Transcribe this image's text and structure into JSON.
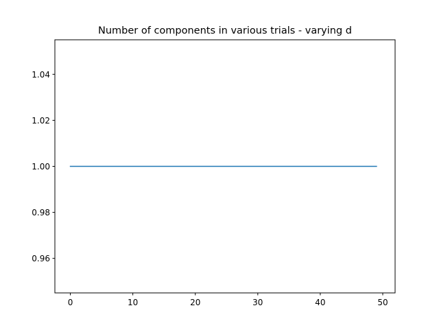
{
  "chart_data": {
    "type": "line",
    "title": "Number of components in various trials - varying d",
    "xlabel": "",
    "ylabel": "",
    "xlim": [
      -2.475,
      51.975
    ],
    "ylim": [
      0.945,
      1.055
    ],
    "xticks": [
      0,
      10,
      20,
      30,
      40,
      50
    ],
    "yticks": [
      0.96,
      0.98,
      1.0,
      1.02,
      1.04
    ],
    "xtick_labels": [
      "0",
      "10",
      "20",
      "30",
      "40",
      "50"
    ],
    "ytick_labels": [
      "0.96",
      "0.98",
      "1.00",
      "1.02",
      "1.04"
    ],
    "grid": false,
    "series": [
      {
        "color": "#1f77b4",
        "x": [
          0,
          1,
          2,
          3,
          4,
          5,
          6,
          7,
          8,
          9,
          10,
          11,
          12,
          13,
          14,
          15,
          16,
          17,
          18,
          19,
          20,
          21,
          22,
          23,
          24,
          25,
          26,
          27,
          28,
          29,
          30,
          31,
          32,
          33,
          34,
          35,
          36,
          37,
          38,
          39,
          40,
          41,
          42,
          43,
          44,
          45,
          46,
          47,
          48,
          49
        ],
        "values": [
          1,
          1,
          1,
          1,
          1,
          1,
          1,
          1,
          1,
          1,
          1,
          1,
          1,
          1,
          1,
          1,
          1,
          1,
          1,
          1,
          1,
          1,
          1,
          1,
          1,
          1,
          1,
          1,
          1,
          1,
          1,
          1,
          1,
          1,
          1,
          1,
          1,
          1,
          1,
          1,
          1,
          1,
          1,
          1,
          1,
          1,
          1,
          1,
          1,
          1
        ]
      }
    ]
  }
}
